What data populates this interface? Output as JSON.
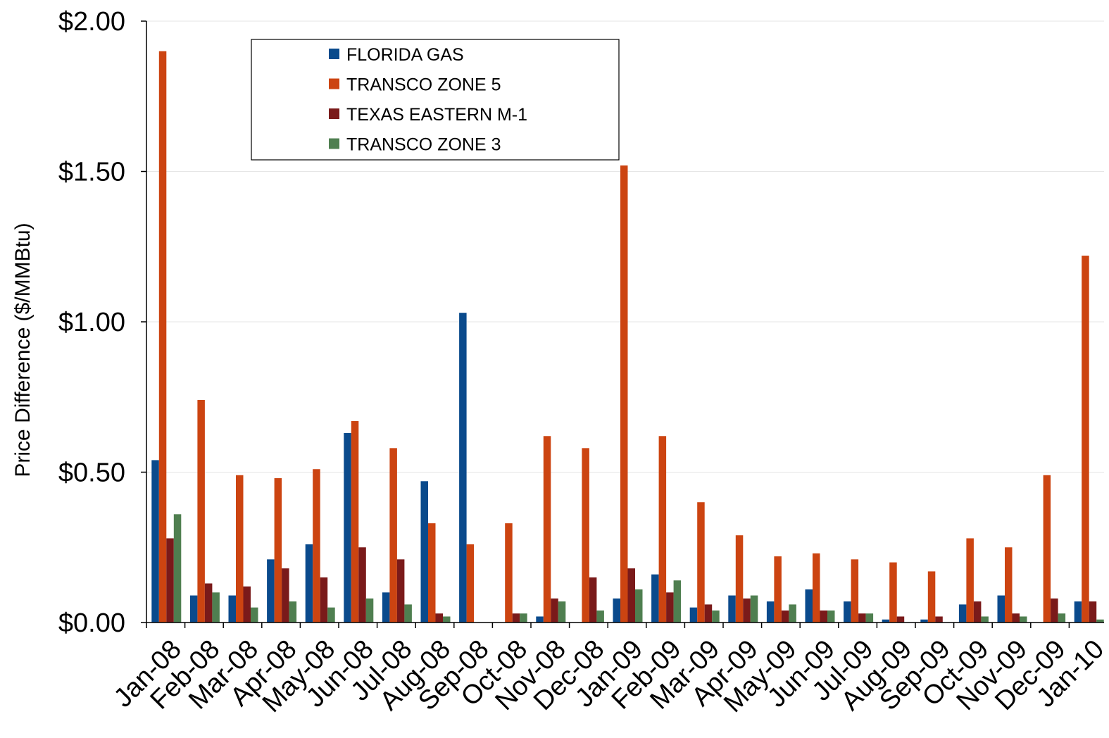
{
  "chart_data": {
    "type": "bar",
    "ylabel": "Price Difference  ($/MMBtu)",
    "ylim": [
      0,
      2.0
    ],
    "yticks": [
      "$0.00",
      "$0.50",
      "$1.00",
      "$1.50",
      "$2.00"
    ],
    "ytick_values": [
      0,
      0.5,
      1.0,
      1.5,
      2.0
    ],
    "grid": true,
    "legend_position": "top-left",
    "categories": [
      "Jan-08",
      "Feb-08",
      "Mar-08",
      "Apr-08",
      "May-08",
      "Jun-08",
      "Jul-08",
      "Aug-08",
      "Sep-08",
      "Oct-08",
      "Nov-08",
      "Dec-08",
      "Jan-09",
      "Feb-09",
      "Mar-09",
      "Apr-09",
      "May-09",
      "Jun-09",
      "Jul-09",
      "Aug-09",
      "Sep-09",
      "Oct-09",
      "Nov-09",
      "Dec-09",
      "Jan-10"
    ],
    "series": [
      {
        "name": "FLORIDA GAS",
        "color": "#0a4a8c",
        "values": [
          0.54,
          0.09,
          0.09,
          0.21,
          0.26,
          0.63,
          0.1,
          0.47,
          1.03,
          0.0,
          0.02,
          0.0,
          0.08,
          0.16,
          0.05,
          0.09,
          0.07,
          0.11,
          0.07,
          0.01,
          0.01,
          0.06,
          0.09,
          0.0,
          0.07
        ]
      },
      {
        "name": "TRANSCO ZONE 5",
        "color": "#cc4411",
        "values": [
          1.9,
          0.74,
          0.49,
          0.48,
          0.51,
          0.67,
          0.58,
          0.33,
          0.26,
          0.33,
          0.62,
          0.58,
          1.52,
          0.62,
          0.4,
          0.29,
          0.22,
          0.23,
          0.21,
          0.2,
          0.17,
          0.28,
          0.25,
          0.49,
          1.22
        ]
      },
      {
        "name": "TEXAS EASTERN M-1",
        "color": "#7a1a1a",
        "values": [
          0.28,
          0.13,
          0.12,
          0.18,
          0.15,
          0.25,
          0.21,
          0.03,
          0.0,
          0.03,
          0.08,
          0.15,
          0.18,
          0.1,
          0.06,
          0.08,
          0.04,
          0.04,
          0.03,
          0.02,
          0.02,
          0.07,
          0.03,
          0.08,
          0.07
        ]
      },
      {
        "name": "TRANSCO ZONE 3",
        "color": "#4f7f50",
        "values": [
          0.36,
          0.1,
          0.05,
          0.07,
          0.05,
          0.08,
          0.06,
          0.02,
          0.0,
          0.03,
          0.07,
          0.04,
          0.11,
          0.14,
          0.04,
          0.09,
          0.06,
          0.04,
          0.03,
          0.0,
          0.0,
          0.02,
          0.02,
          0.03,
          0.01
        ]
      }
    ]
  }
}
